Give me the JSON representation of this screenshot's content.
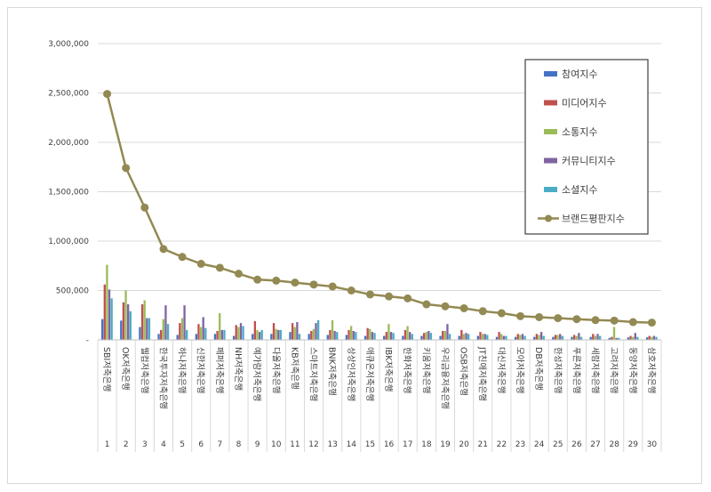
{
  "chart_data": {
    "type": "bar",
    "title": "",
    "xlabel": "",
    "ylabel": "",
    "ylim": [
      0,
      3000000
    ],
    "yticks": [
      "-",
      "500,000",
      "1,000,000",
      "1,500,000",
      "2,000,000",
      "2,500,000",
      "3,000,000"
    ],
    "ytick_values": [
      0,
      500000,
      1000000,
      1500000,
      2000000,
      2500000,
      3000000
    ],
    "grid": true,
    "legend_position": "top-right",
    "numbers": [
      "1",
      "2",
      "3",
      "4",
      "5",
      "6",
      "7",
      "8",
      "9",
      "10",
      "11",
      "12",
      "13",
      "14",
      "15",
      "16",
      "17",
      "18",
      "19",
      "20",
      "21",
      "22",
      "23",
      "24",
      "25",
      "26",
      "27",
      "28",
      "29",
      "30"
    ],
    "categories": [
      "SBI저축은행",
      "OK저축은행",
      "웰컴저축은행",
      "한국투자저축은행",
      "하나저축은행",
      "신한저축은행",
      "페퍼저축은행",
      "NH저축은행",
      "예가람저축은행",
      "다올저축은행",
      "KB저축은행",
      "스마트저축은행",
      "BNK저축은행",
      "상상인저축은행",
      "애큐온저축은행",
      "IBK저축은행",
      "한화저축은행",
      "키움저축은행",
      "우리금융저축은행",
      "OSB저축은행",
      "JT친애저축은행",
      "대신저축은행",
      "모아저축은행",
      "DB저축은행",
      "한성저축은행",
      "푸른저축은행",
      "세람저축은행",
      "고려저축은행",
      "동양저축은행",
      "삼호저축은행"
    ],
    "series": [
      {
        "name": "참여지수",
        "color": "#4472c4",
        "values": [
          210000,
          195000,
          130000,
          60000,
          50000,
          60000,
          60000,
          40000,
          60000,
          60000,
          80000,
          60000,
          50000,
          50000,
          40000,
          40000,
          40000,
          40000,
          40000,
          40000,
          40000,
          30000,
          30000,
          30000,
          30000,
          30000,
          30000,
          20000,
          25000,
          25000
        ]
      },
      {
        "name": "미디어지수",
        "color": "#c0504d",
        "values": [
          560000,
          380000,
          360000,
          100000,
          170000,
          160000,
          90000,
          150000,
          190000,
          170000,
          170000,
          90000,
          100000,
          100000,
          120000,
          80000,
          100000,
          70000,
          90000,
          100000,
          80000,
          80000,
          60000,
          60000,
          50000,
          50000,
          60000,
          30000,
          40000,
          40000
        ]
      },
      {
        "name": "소통지수",
        "color": "#9bbb59",
        "values": [
          760000,
          500000,
          400000,
          210000,
          220000,
          130000,
          270000,
          130000,
          100000,
          110000,
          130000,
          110000,
          200000,
          140000,
          110000,
          160000,
          140000,
          80000,
          90000,
          60000,
          60000,
          60000,
          50000,
          50000,
          50000,
          40000,
          40000,
          130000,
          30000,
          30000
        ]
      },
      {
        "name": "커뮤니티지수",
        "color": "#8064a2",
        "values": [
          510000,
          360000,
          220000,
          350000,
          350000,
          230000,
          100000,
          170000,
          80000,
          100000,
          180000,
          170000,
          90000,
          90000,
          80000,
          80000,
          80000,
          90000,
          160000,
          70000,
          60000,
          40000,
          60000,
          80000,
          60000,
          70000,
          60000,
          20000,
          70000,
          40000
        ]
      },
      {
        "name": "소셜지수",
        "color": "#4bacc6",
        "values": [
          420000,
          290000,
          220000,
          160000,
          100000,
          120000,
          100000,
          140000,
          100000,
          100000,
          60000,
          200000,
          80000,
          80000,
          70000,
          70000,
          60000,
          70000,
          60000,
          60000,
          50000,
          40000,
          40000,
          40000,
          40000,
          30000,
          40000,
          20000,
          30000,
          30000
        ]
      },
      {
        "name": "브랜드평판지수",
        "color": "#938953",
        "type": "line",
        "values": [
          2490000,
          1740000,
          1340000,
          920000,
          840000,
          770000,
          730000,
          670000,
          610000,
          600000,
          580000,
          560000,
          540000,
          500000,
          460000,
          440000,
          420000,
          360000,
          340000,
          320000,
          290000,
          270000,
          240000,
          230000,
          220000,
          210000,
          200000,
          195000,
          180000,
          175000
        ]
      }
    ]
  }
}
